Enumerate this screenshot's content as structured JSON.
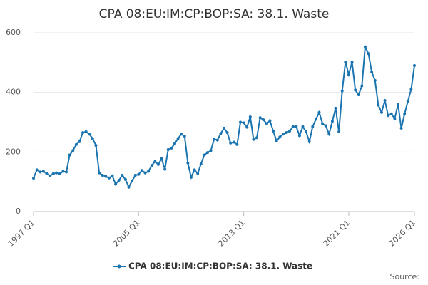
{
  "chart_data": {
    "type": "line",
    "title": "CPA 08:EU:IM:CP:BOP:SA: 38.1. Waste",
    "categories": [
      "1997 Q1",
      null,
      null,
      null,
      null,
      null,
      null,
      null,
      null,
      null,
      null,
      null,
      null,
      null,
      null,
      null,
      null,
      null,
      null,
      null,
      null,
      null,
      null,
      null,
      null,
      null,
      null,
      null,
      null,
      null,
      null,
      null,
      "2005 Q1",
      null,
      null,
      null,
      null,
      null,
      null,
      null,
      null,
      null,
      null,
      null,
      null,
      null,
      null,
      null,
      null,
      null,
      null,
      null,
      null,
      null,
      null,
      null,
      null,
      null,
      null,
      null,
      null,
      null,
      null,
      null,
      "2013 Q1",
      null,
      null,
      null,
      null,
      null,
      null,
      null,
      null,
      null,
      null,
      null,
      null,
      null,
      null,
      null,
      null,
      null,
      null,
      null,
      null,
      null,
      null,
      null,
      null,
      null,
      null,
      null,
      null,
      null,
      null,
      null,
      "2021 Q1",
      null,
      null,
      null,
      null,
      null,
      null,
      null,
      null,
      null,
      null,
      null,
      null,
      null,
      null,
      null,
      null,
      null,
      null,
      null,
      "2026 Q1"
    ],
    "series": [
      {
        "name": "CPA 08:EU:IM:CP:BOP:SA: 38.1. Waste",
        "color": "#1a74b0",
        "values": [
          112,
          140,
          133,
          135,
          128,
          120,
          127,
          130,
          127,
          135,
          133,
          190,
          205,
          225,
          235,
          265,
          268,
          260,
          245,
          222,
          130,
          122,
          118,
          113,
          120,
          92,
          105,
          122,
          108,
          82,
          103,
          122,
          125,
          138,
          130,
          135,
          155,
          168,
          158,
          178,
          142,
          208,
          213,
          228,
          245,
          260,
          253,
          163,
          115,
          140,
          128,
          160,
          190,
          198,
          205,
          243,
          240,
          262,
          280,
          265,
          230,
          233,
          225,
          300,
          298,
          283,
          318,
          242,
          248,
          315,
          308,
          295,
          305,
          270,
          237,
          250,
          260,
          265,
          270,
          285,
          285,
          255,
          285,
          268,
          235,
          285,
          310,
          333,
          295,
          288,
          260,
          303,
          347,
          268,
          405,
          502,
          460,
          502,
          408,
          392,
          422,
          553,
          530,
          468,
          440,
          357,
          333,
          373,
          322,
          328,
          312,
          360,
          280,
          328,
          370,
          410,
          490
        ]
      }
    ],
    "ylim": [
      0,
      600
    ],
    "yticks": [
      0,
      200,
      400,
      600
    ],
    "grid": true,
    "legend": "bottom",
    "source": "Source:"
  }
}
